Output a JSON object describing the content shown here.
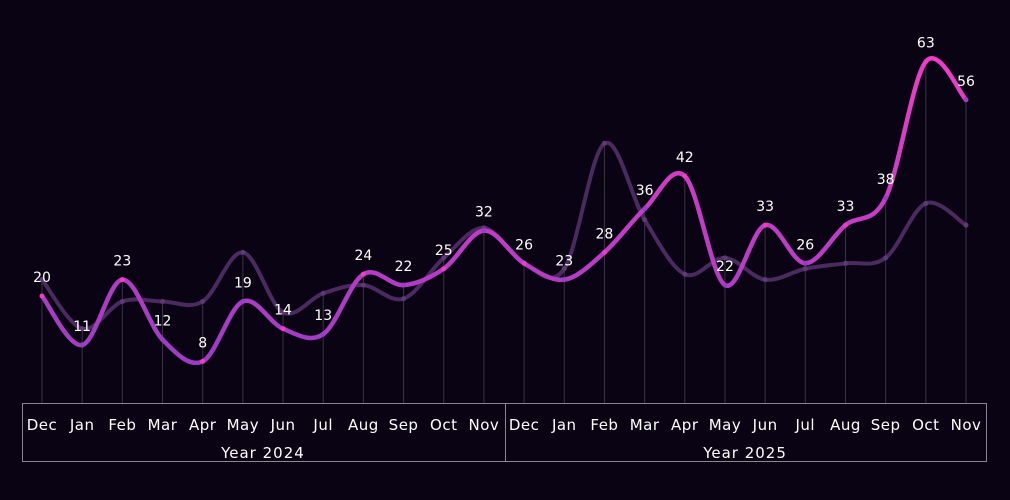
{
  "chart_data": {
    "type": "line",
    "title": "",
    "xlabel": "",
    "ylabel": "",
    "categories": [
      "Dec",
      "Jan",
      "Feb",
      "Mar",
      "Apr",
      "May",
      "Jun",
      "Jul",
      "Aug",
      "Sep",
      "Oct",
      "Nov",
      "Dec",
      "Jan",
      "Feb",
      "Mar",
      "Apr",
      "May",
      "Jun",
      "Jul",
      "Aug",
      "Sep",
      "Oct",
      "Nov"
    ],
    "groups": [
      {
        "label": "Year 2024",
        "count": 12
      },
      {
        "label": "Year 2025",
        "count": 12
      }
    ],
    "series": [
      {
        "name": "primary",
        "color": "#f03cc8",
        "color2": "#9a3cc4",
        "labeled": true,
        "values": [
          20,
          11,
          23,
          12,
          8,
          19,
          14,
          13,
          24,
          22,
          25,
          32,
          26,
          23,
          28,
          36,
          42,
          22,
          33,
          26,
          33,
          38,
          63,
          56
        ]
      },
      {
        "name": "secondary",
        "color": "#4b2a60",
        "labeled": false,
        "values": [
          23,
          14,
          19,
          19,
          19,
          28,
          17,
          20.5,
          22,
          19.5,
          27,
          32.5,
          26,
          25,
          48,
          34,
          24,
          27,
          23,
          25,
          26,
          27,
          37,
          33
        ]
      }
    ],
    "ylim": [
      0,
      66
    ],
    "grid": false,
    "legend": "none"
  }
}
